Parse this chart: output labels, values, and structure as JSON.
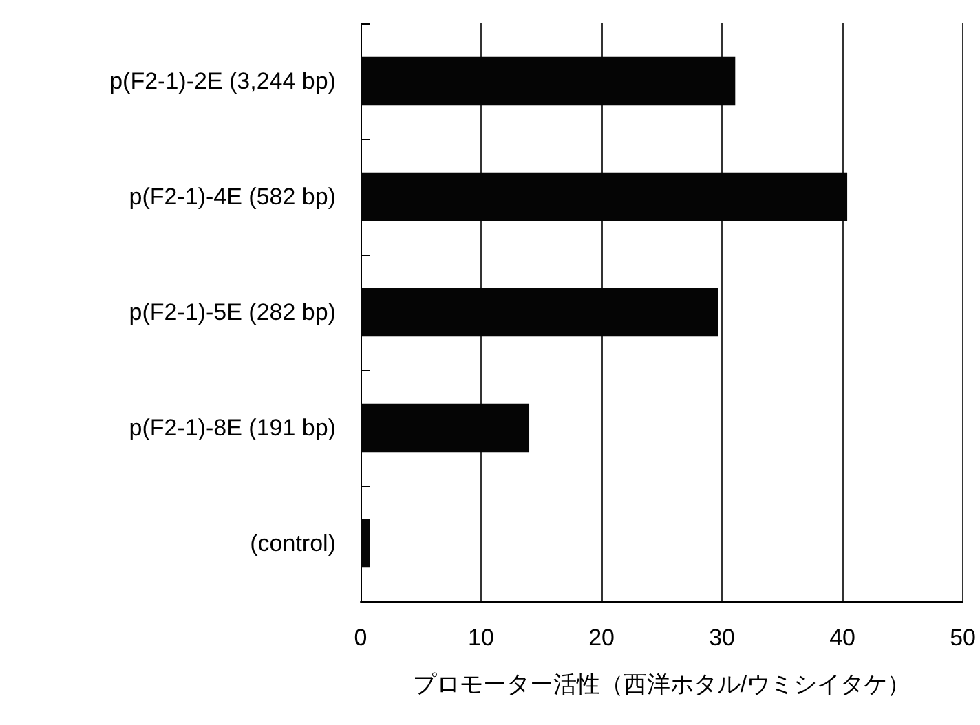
{
  "chart_data": {
    "type": "bar",
    "orientation": "horizontal",
    "xlabel": "プロモーター活性（西洋ホタル/ウミシイタケ）",
    "categories": [
      "p(F2-1)-2E (3,244 bp)",
      "p(F2-1)-4E (582 bp)",
      "p(F2-1)-5E (282 bp)",
      "p(F2-1)-8E (191 bp)",
      "(control)"
    ],
    "values": [
      31.1,
      40.4,
      29.7,
      14.0,
      0.8
    ],
    "color": "#050505",
    "xlim": [
      0,
      50
    ],
    "xticks": [
      0,
      10,
      20,
      30,
      40,
      50
    ],
    "grid": "x"
  }
}
